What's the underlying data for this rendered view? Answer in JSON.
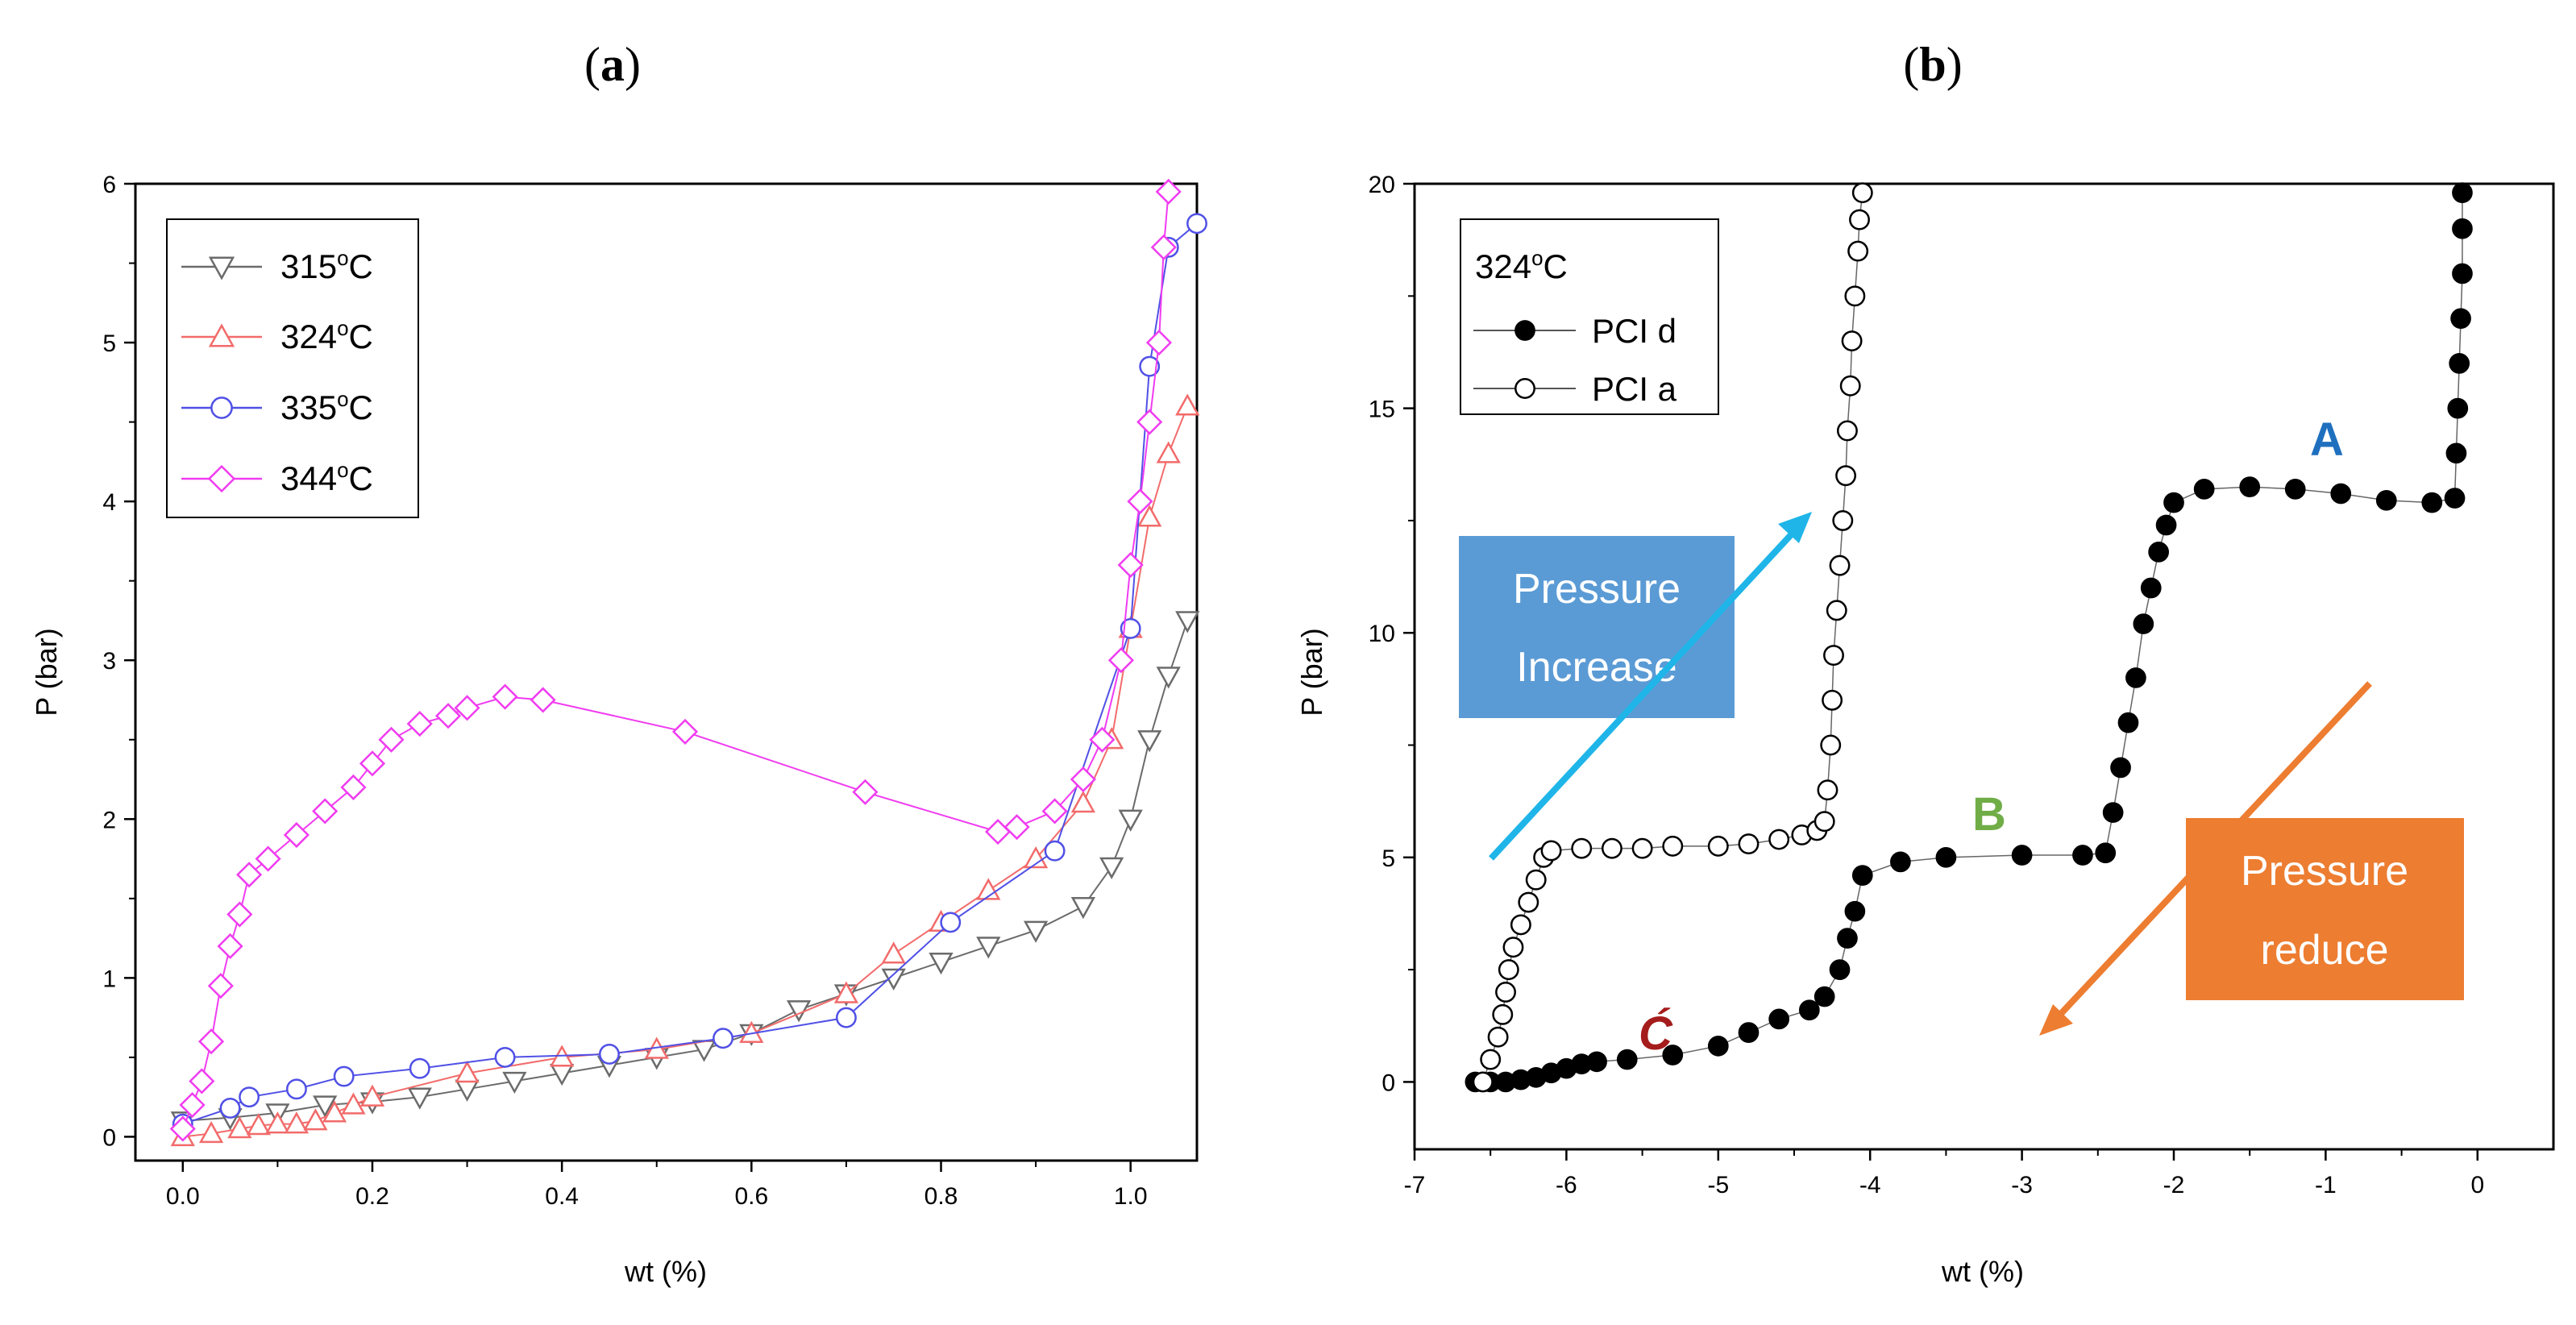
{
  "chart_data": [
    {
      "id": "a",
      "panel_label": "a",
      "type": "line",
      "xlabel": "wt (%)",
      "ylabel": "P (bar)",
      "xlim": [
        -0.05,
        1.07
      ],
      "ylim": [
        -0.15,
        6
      ],
      "xticks": [
        0.0,
        0.2,
        0.4,
        0.6,
        0.8,
        1.0
      ],
      "xtick_labels": [
        "0.0",
        "0.2",
        "0.4",
        "0.6",
        "0.8",
        "1.0"
      ],
      "yticks": [
        0,
        1,
        2,
        3,
        4,
        5,
        6
      ],
      "ytick_labels": [
        "0",
        "1",
        "2",
        "3",
        "4",
        "5",
        "6"
      ],
      "legend_position": "top-left",
      "series": [
        {
          "name": "315°C",
          "label_main": "315",
          "label_sup": "o",
          "label_end": "C",
          "marker": "triangle-down",
          "color": "#6b6b6b",
          "points": [
            [
              0.0,
              0.1
            ],
            [
              0.05,
              0.12
            ],
            [
              0.1,
              0.15
            ],
            [
              0.15,
              0.2
            ],
            [
              0.2,
              0.22
            ],
            [
              0.25,
              0.25
            ],
            [
              0.3,
              0.3
            ],
            [
              0.35,
              0.35
            ],
            [
              0.4,
              0.4
            ],
            [
              0.45,
              0.45
            ],
            [
              0.5,
              0.5
            ],
            [
              0.55,
              0.55
            ],
            [
              0.6,
              0.65
            ],
            [
              0.65,
              0.8
            ],
            [
              0.7,
              0.9
            ],
            [
              0.75,
              1.0
            ],
            [
              0.8,
              1.1
            ],
            [
              0.85,
              1.2
            ],
            [
              0.9,
              1.3
            ],
            [
              0.95,
              1.45
            ],
            [
              0.98,
              1.7
            ],
            [
              1.0,
              2.0
            ],
            [
              1.02,
              2.5
            ],
            [
              1.04,
              2.9
            ],
            [
              1.06,
              3.25
            ]
          ]
        },
        {
          "name": "324°C",
          "label_main": "324",
          "label_sup": "o",
          "label_end": "C",
          "marker": "triangle-up",
          "color": "#f26b6b",
          "points": [
            [
              0.0,
              0.0
            ],
            [
              0.03,
              0.02
            ],
            [
              0.06,
              0.05
            ],
            [
              0.08,
              0.07
            ],
            [
              0.1,
              0.08
            ],
            [
              0.12,
              0.08
            ],
            [
              0.14,
              0.1
            ],
            [
              0.16,
              0.15
            ],
            [
              0.18,
              0.2
            ],
            [
              0.2,
              0.25
            ],
            [
              0.3,
              0.4
            ],
            [
              0.4,
              0.5
            ],
            [
              0.5,
              0.55
            ],
            [
              0.6,
              0.65
            ],
            [
              0.7,
              0.9
            ],
            [
              0.75,
              1.15
            ],
            [
              0.8,
              1.35
            ],
            [
              0.85,
              1.55
            ],
            [
              0.9,
              1.75
            ],
            [
              0.95,
              2.1
            ],
            [
              0.98,
              2.5
            ],
            [
              1.0,
              3.2
            ],
            [
              1.02,
              3.9
            ],
            [
              1.04,
              4.3
            ],
            [
              1.06,
              4.6
            ]
          ]
        },
        {
          "name": "335°C",
          "label_main": "335",
          "label_sup": "o",
          "label_end": "C",
          "marker": "circle",
          "color": "#5050e6",
          "points": [
            [
              0.0,
              0.08
            ],
            [
              0.05,
              0.18
            ],
            [
              0.07,
              0.25
            ],
            [
              0.12,
              0.3
            ],
            [
              0.17,
              0.38
            ],
            [
              0.25,
              0.43
            ],
            [
              0.34,
              0.5
            ],
            [
              0.45,
              0.52
            ],
            [
              0.57,
              0.62
            ],
            [
              0.7,
              0.75
            ],
            [
              0.81,
              1.35
            ],
            [
              0.92,
              1.8
            ],
            [
              1.0,
              3.2
            ],
            [
              1.02,
              4.85
            ],
            [
              1.04,
              5.6
            ],
            [
              1.07,
              5.75
            ]
          ]
        },
        {
          "name": "344°C",
          "label_main": "344",
          "label_sup": "o",
          "label_end": "C",
          "marker": "diamond",
          "color": "#f03cf0",
          "points": [
            [
              0.0,
              0.05
            ],
            [
              0.01,
              0.2
            ],
            [
              0.02,
              0.35
            ],
            [
              0.03,
              0.6
            ],
            [
              0.04,
              0.95
            ],
            [
              0.05,
              1.2
            ],
            [
              0.06,
              1.4
            ],
            [
              0.07,
              1.65
            ],
            [
              0.09,
              1.75
            ],
            [
              0.12,
              1.9
            ],
            [
              0.15,
              2.05
            ],
            [
              0.18,
              2.2
            ],
            [
              0.2,
              2.35
            ],
            [
              0.22,
              2.5
            ],
            [
              0.25,
              2.6
            ],
            [
              0.28,
              2.65
            ],
            [
              0.3,
              2.7
            ],
            [
              0.34,
              2.77
            ],
            [
              0.38,
              2.75
            ],
            [
              0.53,
              2.55
            ],
            [
              0.72,
              2.17
            ],
            [
              0.86,
              1.92
            ],
            [
              0.88,
              1.95
            ],
            [
              0.92,
              2.05
            ],
            [
              0.95,
              2.25
            ],
            [
              0.97,
              2.5
            ],
            [
              0.99,
              3.0
            ],
            [
              1.0,
              3.6
            ],
            [
              1.01,
              4.0
            ],
            [
              1.02,
              4.5
            ],
            [
              1.03,
              5.0
            ],
            [
              1.035,
              5.6
            ],
            [
              1.04,
              5.95
            ]
          ]
        }
      ]
    },
    {
      "id": "b",
      "panel_label": "b",
      "type": "scatter",
      "xlabel": "wt (%)",
      "ylabel": "P (bar)",
      "xlim": [
        -7,
        0.5
      ],
      "ylim": [
        -1.5,
        20
      ],
      "xticks": [
        -7,
        -6,
        -5,
        -4,
        -3,
        -2,
        -1,
        0
      ],
      "xtick_labels": [
        "-7",
        "-6",
        "-5",
        "-4",
        "-3",
        "-2",
        "-1",
        "0"
      ],
      "yticks": [
        0,
        5,
        10,
        15,
        20
      ],
      "ytick_labels": [
        "0",
        "5",
        "10",
        "15",
        "20"
      ],
      "legend_title_main": "324",
      "legend_title_sup": "o",
      "legend_title_end": "C",
      "legend_position": "top-left",
      "series": [
        {
          "name": "PCI d",
          "marker": "filled-circle",
          "color": "#000000",
          "points": [
            [
              -6.6,
              0.0
            ],
            [
              -6.5,
              0.0
            ],
            [
              -6.4,
              0.0
            ],
            [
              -6.3,
              0.05
            ],
            [
              -6.2,
              0.1
            ],
            [
              -6.1,
              0.2
            ],
            [
              -6.0,
              0.3
            ],
            [
              -5.9,
              0.4
            ],
            [
              -5.8,
              0.45
            ],
            [
              -5.6,
              0.5
            ],
            [
              -5.3,
              0.6
            ],
            [
              -5.0,
              0.8
            ],
            [
              -4.8,
              1.1
            ],
            [
              -4.6,
              1.4
            ],
            [
              -4.4,
              1.6
            ],
            [
              -4.3,
              1.9
            ],
            [
              -4.2,
              2.5
            ],
            [
              -4.15,
              3.2
            ],
            [
              -4.1,
              3.8
            ],
            [
              -4.05,
              4.6
            ],
            [
              -3.8,
              4.9
            ],
            [
              -3.5,
              5.0
            ],
            [
              -3.0,
              5.05
            ],
            [
              -2.6,
              5.05
            ],
            [
              -2.45,
              5.1
            ],
            [
              -2.4,
              6.0
            ],
            [
              -2.35,
              7.0
            ],
            [
              -2.3,
              8.0
            ],
            [
              -2.25,
              9.0
            ],
            [
              -2.2,
              10.2
            ],
            [
              -2.15,
              11.0
            ],
            [
              -2.1,
              11.8
            ],
            [
              -2.05,
              12.4
            ],
            [
              -2.0,
              12.9
            ],
            [
              -1.8,
              13.2
            ],
            [
              -1.5,
              13.25
            ],
            [
              -1.2,
              13.2
            ],
            [
              -0.9,
              13.1
            ],
            [
              -0.6,
              12.95
            ],
            [
              -0.3,
              12.9
            ],
            [
              -0.15,
              13.0
            ],
            [
              -0.14,
              14.0
            ],
            [
              -0.13,
              15.0
            ],
            [
              -0.12,
              16.0
            ],
            [
              -0.11,
              17.0
            ],
            [
              -0.1,
              18.0
            ],
            [
              -0.1,
              19.0
            ],
            [
              -0.1,
              19.8
            ]
          ]
        },
        {
          "name": "PCI a",
          "marker": "open-circle",
          "color": "#000000",
          "points": [
            [
              -6.55,
              0.0
            ],
            [
              -6.5,
              0.5
            ],
            [
              -6.45,
              1.0
            ],
            [
              -6.42,
              1.5
            ],
            [
              -6.4,
              2.0
            ],
            [
              -6.38,
              2.5
            ],
            [
              -6.35,
              3.0
            ],
            [
              -6.3,
              3.5
            ],
            [
              -6.25,
              4.0
            ],
            [
              -6.2,
              4.5
            ],
            [
              -6.15,
              5.0
            ],
            [
              -6.1,
              5.15
            ],
            [
              -5.9,
              5.2
            ],
            [
              -5.7,
              5.2
            ],
            [
              -5.5,
              5.2
            ],
            [
              -5.3,
              5.25
            ],
            [
              -5.0,
              5.25
            ],
            [
              -4.8,
              5.3
            ],
            [
              -4.6,
              5.4
            ],
            [
              -4.45,
              5.5
            ],
            [
              -4.35,
              5.6
            ],
            [
              -4.3,
              5.8
            ],
            [
              -4.28,
              6.5
            ],
            [
              -4.26,
              7.5
            ],
            [
              -4.25,
              8.5
            ],
            [
              -4.24,
              9.5
            ],
            [
              -4.22,
              10.5
            ],
            [
              -4.2,
              11.5
            ],
            [
              -4.18,
              12.5
            ],
            [
              -4.16,
              13.5
            ],
            [
              -4.15,
              14.5
            ],
            [
              -4.13,
              15.5
            ],
            [
              -4.12,
              16.5
            ],
            [
              -4.1,
              17.5
            ],
            [
              -4.08,
              18.5
            ],
            [
              -4.07,
              19.2
            ],
            [
              -4.05,
              19.8
            ]
          ]
        }
      ],
      "annotations": [
        {
          "name": "label-A",
          "text": "A",
          "color": "#1f6fbf"
        },
        {
          "name": "label-B",
          "text": "B",
          "color": "#70ad47"
        },
        {
          "name": "label-C",
          "text": "Ć",
          "color": "#a51c1c"
        },
        {
          "name": "box-increase",
          "line1": "Pressure",
          "line2": "Increase",
          "color": "#5b9bd5"
        },
        {
          "name": "box-reduce",
          "line1": "Pressure",
          "line2": "reduce",
          "color": "#ed7d31"
        },
        {
          "name": "arrow-increase",
          "color": "#1fb5e8"
        },
        {
          "name": "arrow-reduce",
          "color": "#ed7d31"
        }
      ]
    }
  ]
}
